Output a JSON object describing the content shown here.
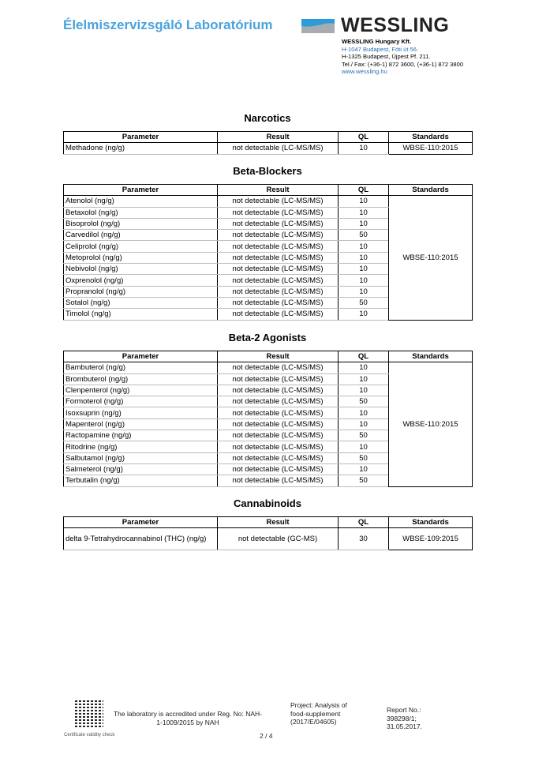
{
  "header": {
    "lab_title": "Élelmiszervizsgáló Laboratórium",
    "logo_text": "WESSLING",
    "company": "WESSLING Hungary Kft.",
    "address1": "H-1047 Budapest, Fóti út 56.",
    "address2": "H-1325 Budapest, Újpest Pf. 211.",
    "phone": "Tel./ Fax: (+36-1) 872 3600, (+36-1) 872 3800",
    "web": "www.wessling.hu"
  },
  "columns": [
    "Parameter",
    "Result",
    "QL",
    "Standards"
  ],
  "sections": [
    {
      "title": "Narcotics",
      "standard": "WBSE-110:2015",
      "rows": [
        [
          "Methadone (ng/g)",
          "not detectable (LC-MS/MS)",
          "10"
        ]
      ]
    },
    {
      "title": "Beta-Blockers",
      "standard": "WBSE-110:2015",
      "rows": [
        [
          "Atenolol (ng/g)",
          "not detectable (LC-MS/MS)",
          "10"
        ],
        [
          "Betaxolol (ng/g)",
          "not detectable (LC-MS/MS)",
          "10"
        ],
        [
          "Bisoprolol (ng/g)",
          "not detectable (LC-MS/MS)",
          "10"
        ],
        [
          "Carvedilol (ng/g)",
          "not detectable (LC-MS/MS)",
          "50"
        ],
        [
          "Celiprolol (ng/g)",
          "not detectable (LC-MS/MS)",
          "10"
        ],
        [
          "Metoprolol (ng/g)",
          "not detectable (LC-MS/MS)",
          "10"
        ],
        [
          "Nebivolol (ng/g)",
          "not detectable (LC-MS/MS)",
          "10"
        ],
        [
          "Oxprenolol (ng/g)",
          "not detectable (LC-MS/MS)",
          "10"
        ],
        [
          "Propranolol (ng/g)",
          "not detectable (LC-MS/MS)",
          "10"
        ],
        [
          "Sotalol (ng/g)",
          "not detectable (LC-MS/MS)",
          "50"
        ],
        [
          "Timolol (ng/g)",
          "not detectable (LC-MS/MS)",
          "10"
        ]
      ]
    },
    {
      "title": "Beta-2 Agonists",
      "standard": "WBSE-110:2015",
      "rows": [
        [
          "Bambuterol (ng/g)",
          "not detectable (LC-MS/MS)",
          "10"
        ],
        [
          "Brombuterol (ng/g)",
          "not detectable (LC-MS/MS)",
          "10"
        ],
        [
          "Clenpenterol (ng/g)",
          "not detectable (LC-MS/MS)",
          "10"
        ],
        [
          "Formoterol (ng/g)",
          "not detectable (LC-MS/MS)",
          "50"
        ],
        [
          "Isoxsuprin (ng/g)",
          "not detectable (LC-MS/MS)",
          "10"
        ],
        [
          "Mapenterol (ng/g)",
          "not detectable (LC-MS/MS)",
          "10"
        ],
        [
          "Ractopamine (ng/g)",
          "not detectable (LC-MS/MS)",
          "50"
        ],
        [
          "Ritodrine (ng/g)",
          "not detectable (LC-MS/MS)",
          "10"
        ],
        [
          "Salbutamol (ng/g)",
          "not detectable (LC-MS/MS)",
          "50"
        ],
        [
          "Salmeterol (ng/g)",
          "not detectable (LC-MS/MS)",
          "10"
        ],
        [
          "Terbutalin (ng/g)",
          "not detectable (LC-MS/MS)",
          "50"
        ]
      ]
    },
    {
      "title": "Cannabinoids",
      "standard": "WBSE-109:2015",
      "rows": [
        [
          "delta 9-Tetrahydrocannabinol (THC) (ng/g)",
          "not detectable (GC-MS)",
          "30"
        ]
      ]
    }
  ],
  "footer": {
    "qr_caption": "Certificate validity check",
    "accreditation": "The laboratory is accredited under Reg. No: NAH-1-1009/2015 by NAH",
    "page": "2 / 4",
    "project": "Project: Analysis of food-supplement (2017/E/04605)",
    "report": "Report No.: 398298/1; 31.05.2017."
  }
}
